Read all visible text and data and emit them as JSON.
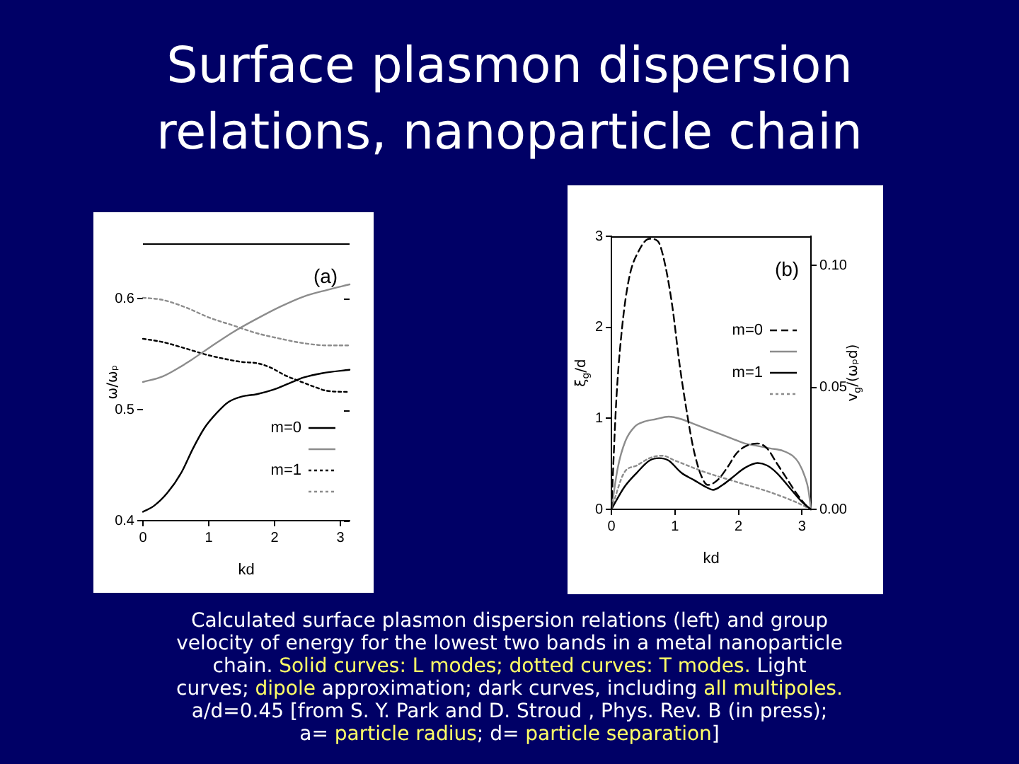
{
  "chart_data": [
    {
      "type": "line",
      "title": "Surface plasmon dispersion relations, nanoparticle chain",
      "xlabel": "kd",
      "ylabel": "ω/ωₚ",
      "annotations": [
        "(a)"
      ],
      "xlim": [
        0,
        3.14
      ],
      "xticks": [
        0,
        1,
        2,
        3
      ],
      "ylim": [
        0.4,
        0.65
      ],
      "yticks": [
        0.4,
        0.5,
        0.6
      ],
      "legend": "bottom right",
      "series": [
        {
          "name": "m=0",
          "color": "#000000",
          "line_style": "solid",
          "x": [
            0,
            0.16,
            0.37,
            0.59,
            0.76,
            0.94,
            1.12,
            1.3,
            1.51,
            1.73,
            1.98,
            2.23,
            2.44,
            2.73,
            3.14
          ],
          "values": [
            0.408,
            0.413,
            0.425,
            0.444,
            0.465,
            0.484,
            0.497,
            0.507,
            0.512,
            0.514,
            0.518,
            0.524,
            0.529,
            0.533,
            0.536
          ]
        },
        {
          "color": "#8c8c8c",
          "line_style": "solid",
          "x": [
            0,
            0.3,
            0.66,
            1.01,
            1.37,
            1.73,
            2.09,
            2.44,
            2.8,
            3.14
          ],
          "values": [
            0.525,
            0.53,
            0.542,
            0.556,
            0.57,
            0.582,
            0.593,
            0.602,
            0.608,
            0.613
          ]
        },
        {
          "name": "m=1",
          "color": "#000000",
          "line_style": "dotted",
          "x": [
            0,
            0.3,
            0.66,
            0.94,
            1.23,
            1.51,
            1.73,
            1.94,
            2.16,
            2.37,
            2.59,
            2.8,
            3.14
          ],
          "values": [
            0.564,
            0.561,
            0.555,
            0.55,
            0.546,
            0.543,
            0.542,
            0.538,
            0.531,
            0.526,
            0.521,
            0.517,
            0.516
          ]
        },
        {
          "color": "#8c8c8c",
          "line_style": "dotted",
          "x": [
            0,
            0.3,
            0.66,
            1.01,
            1.37,
            1.73,
            2.09,
            2.44,
            2.8,
            3.14
          ],
          "values": [
            0.601,
            0.599,
            0.592,
            0.583,
            0.576,
            0.569,
            0.564,
            0.56,
            0.558,
            0.558
          ]
        }
      ]
    },
    {
      "type": "line",
      "xlabel": "kd",
      "ylabel": "ξ$_{g}$/d",
      "y2label": "v$_{g}$/(ωₚd)",
      "annotations": [
        "(b)"
      ],
      "xlim": [
        0,
        3.14
      ],
      "xticks": [
        0,
        1,
        2,
        3
      ],
      "ylim": [
        0,
        3
      ],
      "yticks": [
        0,
        1,
        2,
        3
      ],
      "y2lim": [
        0,
        0.112
      ],
      "y2ticks": [
        {
          "value": 0,
          "label": "0.00"
        },
        {
          "value": 0.05,
          "label": "0.05"
        },
        {
          "value": 0.1,
          "label": "0.10"
        }
      ],
      "legend": "right",
      "series": [
        {
          "name": "m=0",
          "color": "#000000",
          "line_style": "dashed",
          "axis": "y2",
          "x": [
            0,
            0.08,
            0.17,
            0.28,
            0.43,
            0.6,
            0.73,
            0.84,
            0.96,
            1.07,
            1.18,
            1.29,
            1.41,
            1.52,
            1.67,
            1.82,
            1.97,
            2.12,
            2.3,
            2.45,
            2.6,
            2.75,
            2.9,
            3.05,
            3.14
          ],
          "values": [
            0,
            0.046,
            0.075,
            0.095,
            0.106,
            0.111,
            0.11,
            0.101,
            0.083,
            0.06,
            0.041,
            0.025,
            0.014,
            0.01,
            0.012,
            0.017,
            0.023,
            0.026,
            0.027,
            0.025,
            0.019,
            0.013,
            0.007,
            0.002,
            0
          ]
        },
        {
          "color": "#8c8c8c",
          "line_style": "solid",
          "axis": "y2",
          "x": [
            0,
            0.1,
            0.22,
            0.37,
            0.52,
            0.7,
            0.9,
            1.1,
            1.3,
            1.5,
            1.7,
            1.9,
            2.1,
            2.3,
            2.5,
            2.7,
            2.85,
            2.95,
            3.05,
            3.1,
            3.14
          ],
          "values": [
            0,
            0.017,
            0.028,
            0.034,
            0.036,
            0.037,
            0.038,
            0.037,
            0.035,
            0.033,
            0.031,
            0.029,
            0.027,
            0.026,
            0.025,
            0.024,
            0.022,
            0.019,
            0.013,
            0.008,
            0
          ]
        },
        {
          "name": "m=1",
          "color": "#000000",
          "line_style": "solid",
          "axis": "y2",
          "x": [
            0,
            0.2,
            0.4,
            0.6,
            0.75,
            0.9,
            1.1,
            1.3,
            1.5,
            1.6,
            1.75,
            1.9,
            2.1,
            2.3,
            2.45,
            2.6,
            2.8,
            3.0,
            3.14
          ],
          "values": [
            0,
            0.009,
            0.015,
            0.02,
            0.021,
            0.02,
            0.015,
            0.012,
            0.009,
            0.008,
            0.01,
            0.013,
            0.017,
            0.019,
            0.018,
            0.015,
            0.009,
            0.003,
            0
          ]
        },
        {
          "color": "#8c8c8c",
          "line_style": "dotted",
          "axis": "y2",
          "x": [
            0,
            0.2,
            0.4,
            0.6,
            0.8,
            1.0,
            1.5,
            2.0,
            2.5,
            2.9,
            3.14
          ],
          "values": [
            0,
            0.015,
            0.018,
            0.021,
            0.022,
            0.02,
            0.015,
            0.011,
            0.007,
            0.003,
            0
          ]
        }
      ]
    },
    {
      "type": "other",
      "annotations": [
        "Calculated surface plasmon dispersion relations (left) and group",
        "velocity of energy for the lowest two bands in a metal nanoparticle",
        "chain. ",
        "Solid curves: L modes; dotted curves: T modes.",
        " Light",
        "curves; ",
        "dipole",
        " approximation; dark curves, including ",
        "all multipoles.",
        "a/d=0.45 [from S. Y. Park and D. Stroud , Phys. Rev. B (in press);",
        "a= ",
        "particle radius",
        "; d= ",
        "particle separation",
        "]"
      ]
    }
  ]
}
